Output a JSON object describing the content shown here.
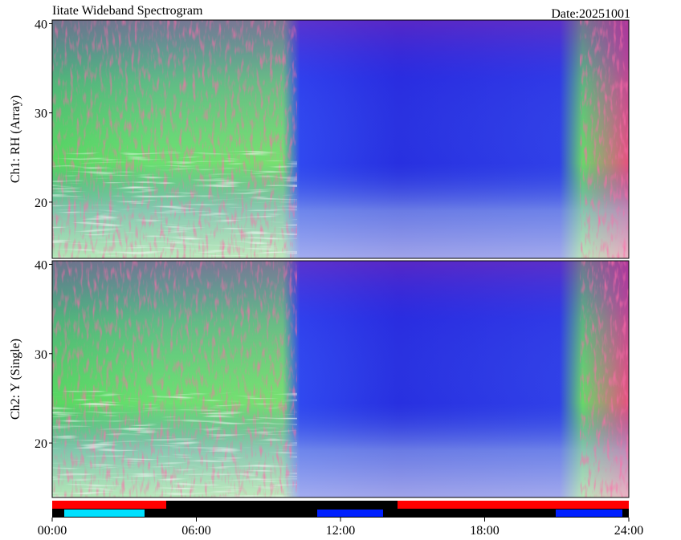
{
  "title": "Iitate Wideband Spectrogram",
  "date": "Date:20251001",
  "chart_data": [
    {
      "type": "heatmap",
      "ylabel": "Ch1: RH (Array)",
      "ylim": [
        13.7,
        40.4
      ],
      "yticks": [
        20,
        30,
        40
      ]
    },
    {
      "type": "heatmap",
      "ylabel": "Ch2: Y (Single)",
      "ylim": [
        13.9,
        40.4
      ],
      "yticks": [
        20,
        30,
        40
      ],
      "xlim": [
        0,
        24
      ],
      "xticks": [
        {
          "value": 0,
          "label": "00:00"
        },
        {
          "value": 6,
          "label": "06:00"
        },
        {
          "value": 12,
          "label": "12:00"
        },
        {
          "value": 18,
          "label": "18:00"
        },
        {
          "value": 24,
          "label": "24:00"
        }
      ]
    }
  ]
}
